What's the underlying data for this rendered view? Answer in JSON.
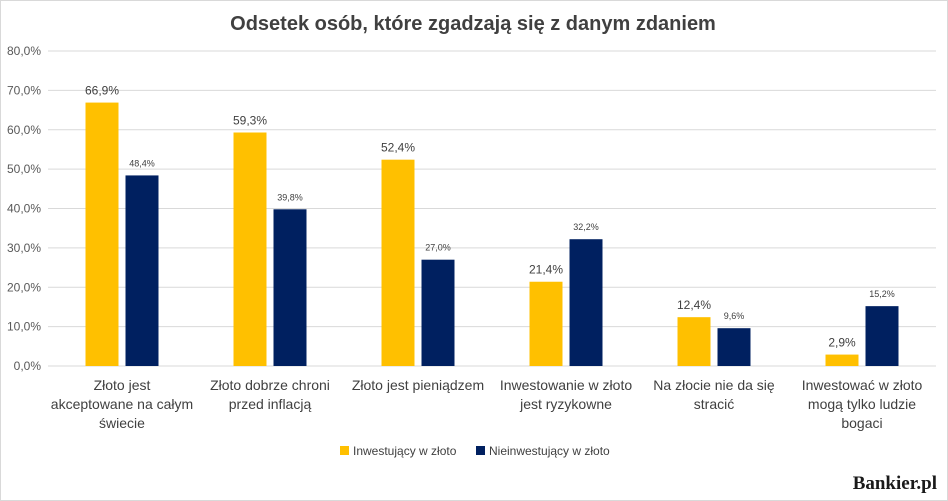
{
  "brand": "Bankier.pl",
  "chart_data": {
    "type": "bar",
    "title": "Odsetek osób, które zgadzają się z danym zdaniem",
    "xlabel": "",
    "ylabel": "",
    "ylim": [
      0,
      80
    ],
    "yticks": [
      "0,0%",
      "10,0%",
      "20,0%",
      "30,0%",
      "40,0%",
      "50,0%",
      "60,0%",
      "70,0%",
      "80,0%"
    ],
    "grid": true,
    "legend_position": "bottom",
    "categories": [
      [
        "Złoto jest",
        "akceptowane na całym",
        "świecie"
      ],
      [
        "Złoto dobrze chroni",
        "przed inflacją"
      ],
      [
        "Złoto jest pieniądzem"
      ],
      [
        "Inwestowanie w złoto",
        "jest ryzykowne"
      ],
      [
        "Na złocie nie da się",
        "stracić"
      ],
      [
        "Inwestować w złoto",
        "mogą tylko ludzie",
        "bogaci"
      ]
    ],
    "series": [
      {
        "name": "Inwestujący w złoto",
        "color": "#ffc000",
        "values": [
          66.9,
          59.3,
          52.4,
          21.4,
          12.4,
          2.9
        ],
        "labels": [
          "66,9%",
          "59,3%",
          "52,4%",
          "21,4%",
          "12,4%",
          "2,9%"
        ]
      },
      {
        "name": "Nieinwestujący w złoto",
        "color": "#002060",
        "values": [
          48.4,
          39.8,
          27.0,
          32.2,
          9.6,
          15.2
        ],
        "labels": [
          "48,4%",
          "39,8%",
          "27,0%",
          "32,2%",
          "9,6%",
          "15,2%"
        ]
      }
    ]
  }
}
